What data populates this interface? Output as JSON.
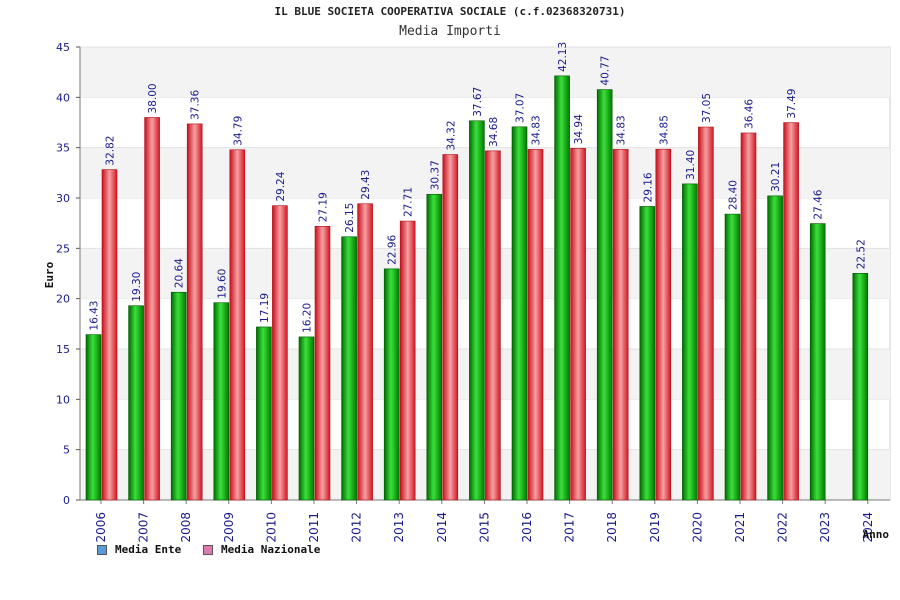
{
  "chart_data": {
    "type": "bar",
    "title": "IL BLUE SOCIETA COOPERATIVA SOCIALE (c.f.02368320731)",
    "subtitle": "Media Importi",
    "xlabel": "Anno",
    "ylabel": "Euro",
    "ylim": [
      0,
      45
    ],
    "yticks": [
      "0",
      "5",
      "10",
      "15",
      "20",
      "25",
      "30",
      "35",
      "40",
      "45"
    ],
    "categories": [
      "2006",
      "2007",
      "2008",
      "2009",
      "2010",
      "2011",
      "2012",
      "2013",
      "2014",
      "2015",
      "2016",
      "2017",
      "2018",
      "2019",
      "2020",
      "2021",
      "2022",
      "2023",
      "2024"
    ],
    "series": [
      {
        "name": "Media Ente",
        "color": "#00aa00",
        "legend_color": "#5b9bd5",
        "values": [
          16.43,
          19.3,
          20.64,
          19.6,
          17.19,
          16.2,
          26.15,
          22.96,
          30.37,
          37.67,
          37.07,
          42.13,
          40.77,
          29.16,
          31.4,
          28.4,
          30.21,
          27.46,
          22.52
        ],
        "labels": [
          "16.43",
          "19.30",
          "20.64",
          "19.60",
          "17.19",
          "16.20",
          "26.15",
          "22.96",
          "30.37",
          "37.67",
          "37.07",
          "42.13",
          "40.77",
          "29.16",
          "31.40",
          "28.40",
          "30.21",
          "27.46",
          "22.52"
        ]
      },
      {
        "name": "Media Nazionale",
        "color": "#e8202a",
        "legend_color": "#dd7ab0",
        "values": [
          32.82,
          38.0,
          37.36,
          34.79,
          29.24,
          27.19,
          29.43,
          27.71,
          34.32,
          34.68,
          34.83,
          34.94,
          34.83,
          34.85,
          37.05,
          36.46,
          37.49,
          null,
          null
        ],
        "labels": [
          "32.82",
          "38.00",
          "37.36",
          "34.79",
          "29.24",
          "27.19",
          "29.43",
          "27.71",
          "34.32",
          "34.68",
          "34.83",
          "34.94",
          "34.83",
          "34.85",
          "37.05",
          "36.46",
          "37.49",
          null,
          null
        ]
      }
    ],
    "grid": true,
    "legend": "bottom-left"
  }
}
